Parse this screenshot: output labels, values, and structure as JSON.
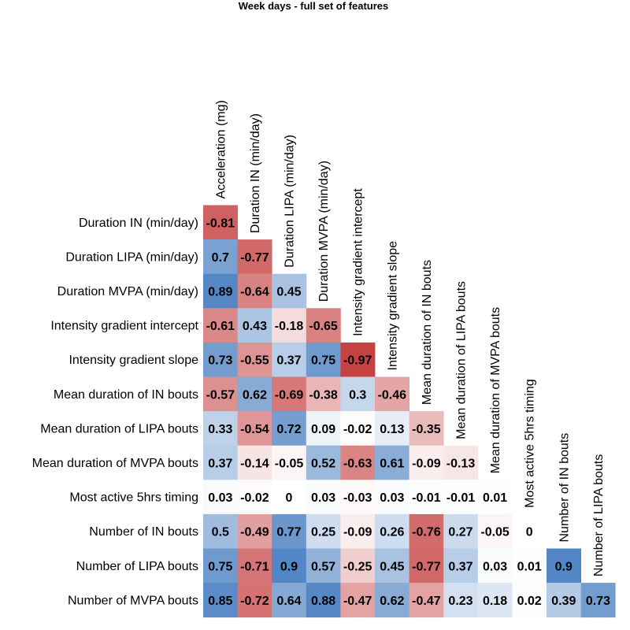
{
  "chart_data": {
    "type": "heatmap",
    "title": "Week days - full set of features",
    "columns": [
      "Acceleration (mg)",
      "Duration IN (min/day)",
      "Duration LIPA (min/day)",
      "Duration MVPA (min/day)",
      "Intensity gradient intercept",
      "Intensity gradient slope",
      "Mean duration of IN bouts",
      "Mean duration of LIPA bouts",
      "Mean duration of MVPA bouts",
      "Most active 5hrs timing",
      "Number of IN bouts",
      "Number of LIPA bouts"
    ],
    "rows": [
      "Duration IN (min/day)",
      "Duration LIPA (min/day)",
      "Duration MVPA (min/day)",
      "Intensity gradient intercept",
      "Intensity gradient slope",
      "Mean duration of IN bouts",
      "Mean duration of LIPA bouts",
      "Mean duration of MVPA bouts",
      "Most active 5hrs timing",
      "Number of IN bouts",
      "Number of LIPA bouts",
      "Number of MVPA bouts"
    ],
    "values": [
      [
        "-0.81"
      ],
      [
        "0.7",
        "-0.77"
      ],
      [
        "0.89",
        "-0.64",
        "0.45"
      ],
      [
        "-0.61",
        "0.43",
        "-0.18",
        "-0.65"
      ],
      [
        "0.73",
        "-0.55",
        "0.37",
        "0.75",
        "-0.97"
      ],
      [
        "-0.57",
        "0.62",
        "-0.69",
        "-0.38",
        "0.3",
        "-0.46"
      ],
      [
        "0.33",
        "-0.54",
        "0.72",
        "0.09",
        "-0.02",
        "0.13",
        "-0.35"
      ],
      [
        "0.37",
        "-0.14",
        "-0.05",
        "0.52",
        "-0.63",
        "0.61",
        "-0.09",
        "-0.13"
      ],
      [
        "0.03",
        "-0.02",
        "0",
        "0.03",
        "-0.03",
        "0.03",
        "-0.01",
        "-0.01",
        "0.01"
      ],
      [
        "0.5",
        "-0.49",
        "0.77",
        "0.25",
        "-0.09",
        "0.26",
        "-0.76",
        "0.27",
        "-0.05",
        "0"
      ],
      [
        "0.75",
        "-0.71",
        "0.9",
        "0.57",
        "-0.25",
        "0.45",
        "-0.77",
        "0.37",
        "0.03",
        "0.01",
        "0.9"
      ],
      [
        "0.85",
        "-0.72",
        "0.64",
        "0.88",
        "-0.47",
        "0.62",
        "-0.47",
        "0.23",
        "0.18",
        "0.02",
        "0.39",
        "0.73"
      ]
    ],
    "value_range": [
      -1,
      1
    ],
    "colors": {
      "negative": "#c43c3c",
      "zero": "#ffffff",
      "positive": "#3f78bd"
    },
    "legend": "none",
    "grid": false
  }
}
